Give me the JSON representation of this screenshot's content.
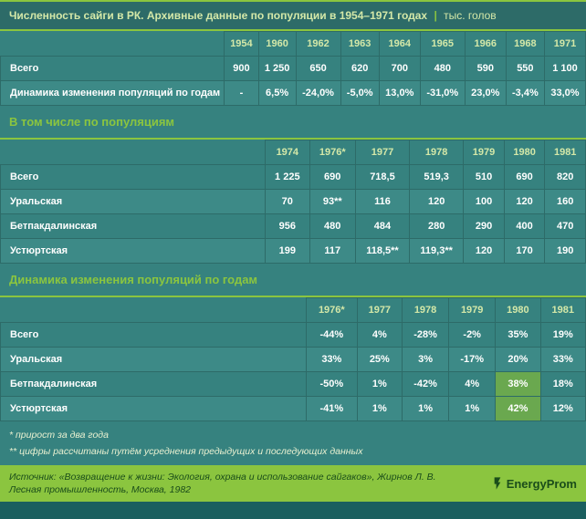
{
  "title": {
    "main": "Численность сайги в РК. Архивные данные по популяции в 1954–1971 годах",
    "separator": "|",
    "unit": "тыс. голов"
  },
  "colors": {
    "accent": "#8bc53f",
    "bg_dark": "#2d6b68",
    "bg_mid": "#36827f",
    "highlight": "#6aa84f",
    "text_light": "#d4e8a8"
  },
  "table1": {
    "years": [
      "1954",
      "1960",
      "1962",
      "1963",
      "1964",
      "1965",
      "1966",
      "1968",
      "1971"
    ],
    "rows": [
      {
        "label": "Всего",
        "values": [
          "900",
          "1 250",
          "650",
          "620",
          "700",
          "480",
          "590",
          "550",
          "1 100"
        ]
      },
      {
        "label": "Динамика изменения популяций по годам",
        "values": [
          "-",
          "6,5%",
          "-24,0%",
          "-5,0%",
          "13,0%",
          "-31,0%",
          "23,0%",
          "-3,4%",
          "33,0%"
        ]
      }
    ]
  },
  "section2_title": "В том числе по популяциям",
  "table2": {
    "years": [
      "1974",
      "1976*",
      "1977",
      "1978",
      "1979",
      "1980",
      "1981"
    ],
    "rows": [
      {
        "label": "Всего",
        "values": [
          "1 225",
          "690",
          "718,5",
          "519,3",
          "510",
          "690",
          "820"
        ]
      },
      {
        "label": "Уральская",
        "values": [
          "70",
          "93**",
          "116",
          "120",
          "100",
          "120",
          "160"
        ]
      },
      {
        "label": "Бетпакдалинская",
        "values": [
          "956",
          "480",
          "484",
          "280",
          "290",
          "400",
          "470"
        ]
      },
      {
        "label": "Устюртская",
        "values": [
          "199",
          "117",
          "118,5**",
          "119,3**",
          "120",
          "170",
          "190"
        ]
      }
    ]
  },
  "section3_title": "Динамика изменения популяций по годам",
  "table3": {
    "years": [
      "1976*",
      "1977",
      "1978",
      "1979",
      "1980",
      "1981"
    ],
    "rows": [
      {
        "label": "Всего",
        "values": [
          "-44%",
          "4%",
          "-28%",
          "-2%",
          "35%",
          "19%"
        ],
        "hl": []
      },
      {
        "label": "Уральская",
        "values": [
          "33%",
          "25%",
          "3%",
          "-17%",
          "20%",
          "33%"
        ],
        "hl": []
      },
      {
        "label": "Бетпакдалинская",
        "values": [
          "-50%",
          "1%",
          "-42%",
          "4%",
          "38%",
          "18%"
        ],
        "hl": [
          4
        ]
      },
      {
        "label": "Устюртская",
        "values": [
          "-41%",
          "1%",
          "1%",
          "1%",
          "42%",
          "12%"
        ],
        "hl": [
          4
        ]
      }
    ]
  },
  "notes": [
    "* прирост за два года",
    "** цифры рассчитаны путём усреднения предыдущих и последующих данных"
  ],
  "source": "Источник: «Возвращение к жизни: Экология, охрана и использование сайгаков», Жирнов Л. В. Лесная промышленность, Москва, 1982",
  "brand": "EnergyProm"
}
